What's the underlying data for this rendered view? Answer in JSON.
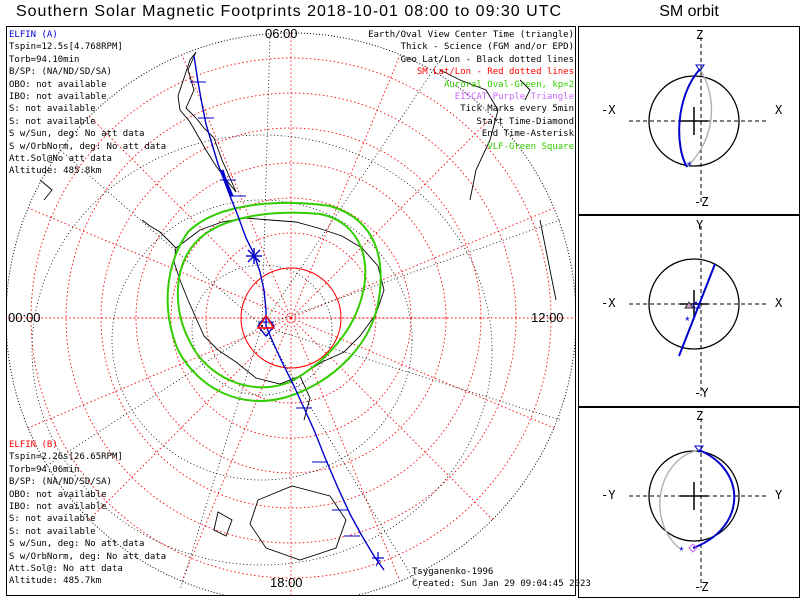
{
  "title": "Southern Solar Magnetic Footprints 2018-10-01 08:00 to 09:30 UTC",
  "orbit_title": "SM orbit",
  "edge_labels": {
    "top": "06:00",
    "left": "00:00",
    "right": "12:00",
    "bottom": "18:00"
  },
  "spacecraft_a": {
    "name": "ELFIN (A)",
    "lines": [
      "Tspin=12.5s[4.768RPM]",
      "Torb=94.10min",
      "B/SP: (NA/ND/SD/SA)",
      "OBO: not available",
      "IBO: not available",
      "S: not available",
      "S: not available",
      "S w/Sun, deg: No att data",
      "S w/OrbNorm, deg: No att data",
      "Att.Sol@No att data",
      "Altitude: 485.8km"
    ]
  },
  "spacecraft_b": {
    "name": "ELFIN (B)",
    "lines": [
      "Tspin=2.26s[26.65RPM]",
      "Torb=94.06min",
      "B/SP: (NA/ND/SD/SA)",
      "OBO: not available",
      "IBO: not available",
      "S: not available",
      "S: not available",
      "S w/Sun, deg: No att data",
      "S w/OrbNorm, deg: No att data",
      "Att.Sol@: No att data",
      "Altitude: 485.7km"
    ]
  },
  "legend": [
    {
      "text": "Earth/Oval View Center Time (triangle)",
      "color": "#000000"
    },
    {
      "text": "Thick - Science (FGM and/or EPD)",
      "color": "#000000"
    },
    {
      "text": "Geo Lat/Lon - Black dotted lines",
      "color": "#000000"
    },
    {
      "text": "SM Lat/Lon - Red dotted lines",
      "color": "#ff0000"
    },
    {
      "text": "Auroral Oval-Green, kp=2",
      "color": "#33cc00"
    },
    {
      "text": "EISCAT-Purple Triangle",
      "color": "#cc66ff"
    },
    {
      "text": "Tick Marks every 5min",
      "color": "#000000"
    },
    {
      "text": "Start Time-Diamond",
      "color": "#000000"
    },
    {
      "text": "End Time-Asterisk",
      "color": "#000000"
    },
    {
      "text": "VLF-Green Square",
      "color": "#33cc00"
    }
  ],
  "credits": {
    "line1": "Tsyganenko-1996",
    "line2": "Created: Sun Jan 29 09:04:45 2023"
  },
  "panels": [
    {
      "top": "Z",
      "bottom": "-Z",
      "left": "-X",
      "right": "X"
    },
    {
      "top": "Y",
      "bottom": "-Y",
      "left": "-X",
      "right": "X"
    },
    {
      "top": "Z",
      "bottom": "-Z",
      "left": "-Y",
      "right": "Y"
    }
  ],
  "colors": {
    "orbit": "#0000cc",
    "red_grid": "#ff0000",
    "oval": "#33cc00",
    "earth": "#000000",
    "orbit_b": "#b0b0b0"
  }
}
